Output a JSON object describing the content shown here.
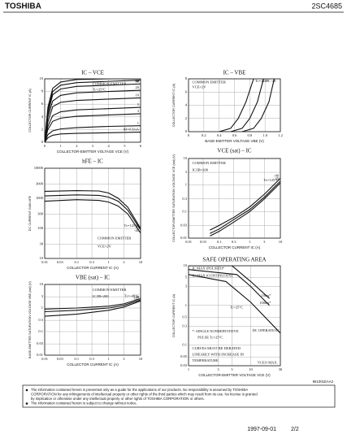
{
  "header": {
    "brand": "TOSHIBA",
    "part": "2SC4685"
  },
  "chart_data": [
    {
      "type": "line",
      "title": "IC – VCE",
      "x_label": "COLLECTOR-EMITTER VOLTAGE VCE (V)",
      "y_label": "COLLECTOR CURRENT IC (A)",
      "xlim": [
        0,
        6
      ],
      "xticks": [
        0,
        1,
        2,
        3,
        4,
        5,
        6
      ],
      "ylim": [
        0,
        10
      ],
      "yticks": [
        0,
        2,
        4,
        6,
        8,
        10
      ],
      "grid": true,
      "annotations": [
        "COMMON EMITTER",
        "Tc=25°C"
      ],
      "series": [
        {
          "name": "60",
          "color": "#111",
          "x": [
            0,
            0.2,
            0.5,
            1,
            2,
            4,
            6
          ],
          "values": [
            0,
            5.5,
            8.5,
            9.5,
            9.9,
            10,
            10
          ]
        },
        {
          "name": "40",
          "color": "#111",
          "x": [
            0,
            0.2,
            0.5,
            1,
            2,
            4,
            6
          ],
          "values": [
            0,
            5,
            8,
            9,
            9.4,
            9.6,
            9.8
          ]
        },
        {
          "name": "30",
          "color": "#111",
          "x": [
            0,
            0.2,
            0.5,
            1,
            2,
            4,
            6
          ],
          "values": [
            0,
            4.5,
            7.5,
            8.4,
            8.8,
            9,
            9.2
          ]
        },
        {
          "name": "20",
          "color": "#111",
          "x": [
            0,
            0.2,
            0.5,
            1,
            2,
            4,
            6
          ],
          "values": [
            0,
            4,
            6.5,
            7.4,
            7.8,
            8,
            8.2
          ]
        },
        {
          "name": "10",
          "color": "#111",
          "x": [
            0,
            0.2,
            0.5,
            1,
            2,
            4,
            6
          ],
          "values": [
            0,
            3.2,
            5.6,
            6.3,
            6.6,
            6.8,
            7
          ]
        },
        {
          "name": "5",
          "color": "#111",
          "x": [
            0,
            0.2,
            0.5,
            1,
            2,
            4,
            6
          ],
          "values": [
            0,
            2.5,
            4.2,
            4.8,
            5.1,
            5.3,
            5.5
          ]
        },
        {
          "name": "3",
          "color": "#111",
          "x": [
            0,
            0.2,
            0.5,
            1,
            2,
            4,
            6
          ],
          "values": [
            0,
            2,
            3.3,
            3.8,
            4.1,
            4.3,
            4.5
          ]
        },
        {
          "name": "1",
          "color": "#111",
          "x": [
            0,
            0.2,
            0.5,
            1,
            2,
            4,
            6
          ],
          "values": [
            0,
            1.2,
            1.8,
            2.1,
            2.3,
            2.5,
            2.6
          ]
        },
        {
          "name": "IB=0.5mA",
          "color": "#111",
          "x": [
            0,
            0.2,
            0.5,
            1,
            2,
            4,
            6
          ],
          "values": [
            0,
            0.7,
            1.1,
            1.3,
            1.4,
            1.5,
            1.6
          ]
        }
      ]
    },
    {
      "type": "line",
      "title": "IC – VBE",
      "x_label": "BASE-EMITTER VOLTAGE VBE (V)",
      "y_label": "COLLECTOR CURRENT IC (A)",
      "xlim": [
        0,
        1.2
      ],
      "xticks": [
        0,
        0.2,
        0.4,
        0.6,
        0.8,
        {
          "value": 1,
          "label": "1.0"
        },
        1.2
      ],
      "ylim": [
        0,
        8
      ],
      "yticks": [
        0,
        2,
        4,
        6,
        8
      ],
      "grid": true,
      "annotations": [
        "COMMON EMITTER",
        "VCE=2V"
      ],
      "series": [
        {
          "name": "Tc=125°C",
          "color": "#111",
          "x": [
            0.4,
            0.55,
            0.65,
            0.75,
            0.85
          ],
          "values": [
            0,
            0.5,
            2,
            4.5,
            8
          ]
        },
        {
          "name": "25",
          "color": "#111",
          "x": [
            0.55,
            0.7,
            0.8,
            0.9,
            0.98
          ],
          "values": [
            0,
            0.5,
            2,
            4.5,
            8
          ]
        },
        {
          "name": "-40",
          "color": "#111",
          "x": [
            0.7,
            0.85,
            0.95,
            1.05,
            1.12
          ],
          "values": [
            0,
            0.5,
            2,
            4.5,
            8
          ]
        }
      ]
    },
    {
      "type": "line",
      "title": "hFE – IC",
      "x_label": "COLLECTOR CURRENT IC (A)",
      "y_label": "DC CURRENT GAIN hFE",
      "xlog": true,
      "ylog": true,
      "xlim": [
        0.01,
        10
      ],
      "xticks": [
        0.01,
        0.03,
        0.1,
        0.3,
        1,
        3,
        10
      ],
      "ylim": [
        10,
        10000
      ],
      "yticks": [
        10,
        30,
        100,
        300,
        1000,
        3000,
        10000
      ],
      "grid": true,
      "annotations": [
        "COMMON EMITTER",
        "VCE=2V"
      ],
      "series": [
        {
          "name": "Tc=125°C",
          "color": "#111",
          "x": [
            0.01,
            0.1,
            0.5,
            1,
            2,
            4,
            10
          ],
          "values": [
            1700,
            1800,
            1750,
            1500,
            1000,
            500,
            100
          ]
        },
        {
          "name": "25",
          "color": "#111",
          "x": [
            0.01,
            0.1,
            0.5,
            1,
            2,
            4,
            10
          ],
          "values": [
            1200,
            1300,
            1250,
            1100,
            800,
            400,
            90
          ]
        },
        {
          "name": "-40",
          "color": "#111",
          "x": [
            0.01,
            0.1,
            0.5,
            1,
            2,
            4,
            10
          ],
          "values": [
            800,
            900,
            850,
            750,
            550,
            300,
            70
          ]
        }
      ]
    },
    {
      "type": "line",
      "title": "VCE (sat) – IC",
      "x_label": "COLLECTOR CURRENT IC (A)",
      "y_label": "COLLECTOR-EMITTER SATURATION VOLTAGE VCE (sat) (V)",
      "xlog": true,
      "ylog": true,
      "xlim": [
        0.01,
        10
      ],
      "xticks": [
        0.01,
        0.03,
        0.1,
        0.3,
        1,
        3,
        10
      ],
      "ylim": [
        0.01,
        10
      ],
      "yticks": [
        0.01,
        0.03,
        0.1,
        0.3,
        1,
        3,
        10
      ],
      "grid": true,
      "annotations": [
        "COMMON EMITTER",
        "IC/IB=200"
      ],
      "series": [
        {
          "name": "Tc=125°C",
          "color": "#111",
          "x": [
            0.05,
            0.1,
            0.3,
            1,
            3,
            10
          ],
          "values": [
            0.012,
            0.018,
            0.04,
            0.1,
            0.3,
            1.2
          ]
        },
        {
          "name": "25",
          "color": "#111",
          "x": [
            0.05,
            0.1,
            0.3,
            1,
            3,
            10
          ],
          "values": [
            0.015,
            0.022,
            0.05,
            0.12,
            0.35,
            1.4
          ]
        },
        {
          "name": "-40",
          "color": "#111",
          "x": [
            0.05,
            0.1,
            0.3,
            1,
            3,
            10
          ],
          "values": [
            0.02,
            0.03,
            0.06,
            0.15,
            0.45,
            1.8
          ]
        }
      ]
    },
    {
      "type": "line",
      "title": "VBE (sat) – IC",
      "x_label": "COLLECTOR CURRENT IC (A)",
      "y_label": "BASE-EMITTER SATURATION VOLTAGE VBE (sat) (V)",
      "xlog": true,
      "ylog": true,
      "xlim": [
        0.01,
        10
      ],
      "xticks": [
        0.01,
        0.03,
        0.1,
        0.3,
        1,
        3,
        10
      ],
      "ylim": [
        0.01,
        10
      ],
      "yticks": [
        0.01,
        0.03,
        0.1,
        0.3,
        1,
        3,
        10
      ],
      "grid": true,
      "annotations": [
        "COMMON EMITTER",
        "IC/IB=200"
      ],
      "series": [
        {
          "name": "Tc=-40°C",
          "color": "#111",
          "x": [
            0.01,
            0.1,
            1,
            3,
            10
          ],
          "values": [
            0.9,
            1,
            1.2,
            1.5,
            2.5
          ]
        },
        {
          "name": "25",
          "color": "#111",
          "x": [
            0.01,
            0.1,
            1,
            3,
            10
          ],
          "values": [
            0.7,
            0.8,
            1,
            1.3,
            2.2
          ]
        },
        {
          "name": "125",
          "color": "#111",
          "x": [
            0.01,
            0.1,
            1,
            3,
            10
          ],
          "values": [
            0.45,
            0.55,
            0.8,
            1.1,
            2
          ]
        }
      ]
    },
    {
      "type": "line",
      "title": "SAFE OPERATING AREA",
      "x_label": "COLLECTOR-EMITTER VOLTAGE VCE (V)",
      "y_label": "COLLECTOR CURRENT IC (A)",
      "xlog": true,
      "ylog": true,
      "xlim": [
        1,
        30
      ],
      "xticks": [
        1,
        3,
        5,
        10,
        30
      ],
      "ylim": [
        0.03,
        10
      ],
      "yticks": [
        0.03,
        0.05,
        0.1,
        0.3,
        0.5,
        1,
        3,
        5,
        10
      ],
      "grid": true,
      "annotations": [
        "IC MAX (PULSED)*",
        "IC MAX (CONTINUOUS)",
        "Tc=25°C",
        "*: SINGLE NONREPETITIVE",
        "PULSE Tc=25°C",
        "CURVES MUST BE DERATED",
        "LINEARLY WITH INCREASE IN",
        "TEMPERATURE.",
        "VCEO MAX."
      ],
      "series": [
        {
          "name": "10ms*",
          "color": "#111",
          "x": [
            1,
            5,
            10,
            20
          ],
          "values": [
            10,
            10,
            4,
            1.5
          ]
        },
        {
          "name": "100ms*",
          "color": "#111",
          "x": [
            1,
            6,
            10,
            20
          ],
          "values": [
            8,
            6,
            3,
            1
          ]
        },
        {
          "name": "DC OPERATION",
          "color": "#111",
          "x": [
            1,
            4,
            10,
            30
          ],
          "values": [
            6,
            4,
            1.2,
            0.2
          ]
        }
      ]
    }
  ],
  "footer": {
    "code": "961001EAA2",
    "notes": [
      "The information contained herein is presented only as a guide for the applications of our products. No responsibility is assumed by TOSHIBA",
      "CORPORATION for any infringements of intellectual property or other rights of the third parties which may result from its use. No license is granted",
      "by implication or otherwise under any intellectual property or other rights of TOSHIBA CORPORATION or others.",
      "The information contained herein is subject to change without notice."
    ],
    "date": "1997-09-01",
    "page": "2/2"
  }
}
